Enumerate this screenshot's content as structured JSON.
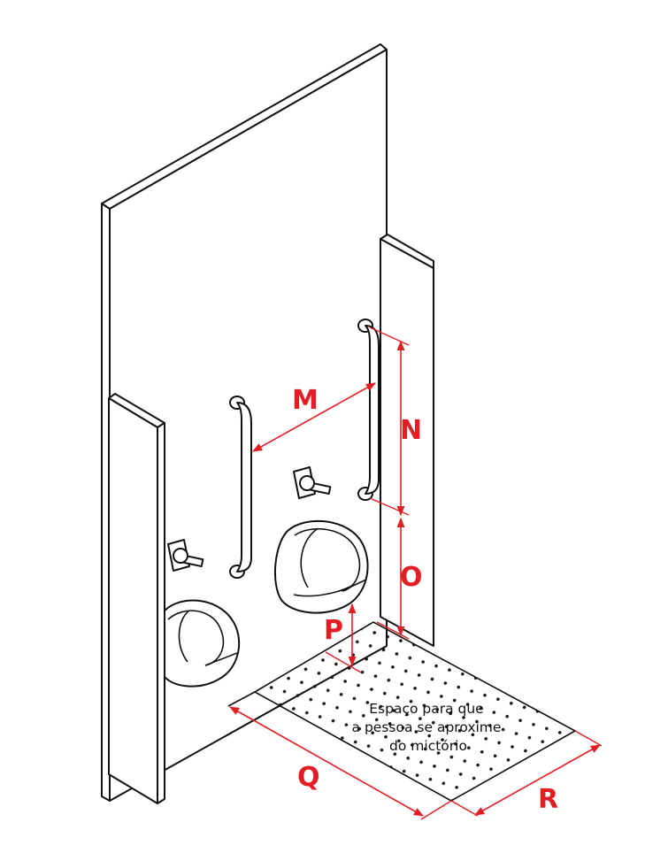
{
  "labels": {
    "m": "M",
    "n": "N",
    "o": "O",
    "p": "P",
    "q": "Q",
    "r": "R"
  },
  "caption": {
    "line1": "Espaço para que",
    "line2": "a pessoa se aproxime",
    "line3": "do mictório"
  },
  "colors": {
    "dimension": "#e41d24",
    "outline": "#111111"
  }
}
